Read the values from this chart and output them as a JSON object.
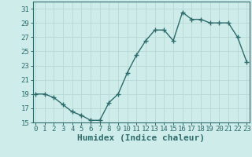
{
  "xlabel": "Humidex (Indice chaleur)",
  "x": [
    0,
    1,
    2,
    3,
    4,
    5,
    6,
    7,
    8,
    9,
    10,
    11,
    12,
    13,
    14,
    15,
    16,
    17,
    18,
    19,
    20,
    21,
    22,
    23
  ],
  "y": [
    19,
    19,
    18.5,
    17.5,
    16.5,
    16,
    15.3,
    15.3,
    17.8,
    19,
    22,
    24.5,
    26.5,
    28,
    28,
    26.5,
    30.5,
    29.5,
    29.5,
    29,
    29,
    29,
    27,
    23.5
  ],
  "ylim": [
    15,
    32
  ],
  "yticks": [
    15,
    17,
    19,
    21,
    23,
    25,
    27,
    29,
    31
  ],
  "xticks": [
    0,
    1,
    2,
    3,
    4,
    5,
    6,
    7,
    8,
    9,
    10,
    11,
    12,
    13,
    14,
    15,
    16,
    17,
    18,
    19,
    20,
    21,
    22,
    23
  ],
  "line_color": "#2e6b6b",
  "bg_color": "#ceecea",
  "grid_color": "#b8d8d5",
  "xlabel_fontsize": 8,
  "tick_fontsize": 6.5,
  "marker": "+",
  "marker_size": 4,
  "linewidth": 1.0
}
